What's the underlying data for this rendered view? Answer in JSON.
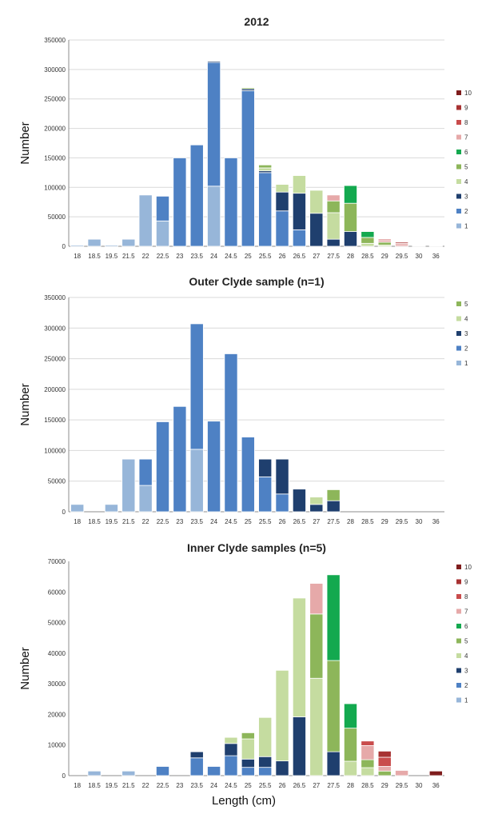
{
  "colors": {
    "1": "#97b6d9",
    "2": "#4e81c4",
    "3": "#1f3f6e",
    "4": "#c5dca0",
    "5": "#8db65a",
    "6": "#13a94f",
    "7": "#e6a9a9",
    "8": "#c94c4c",
    "9": "#a83232",
    "10": "#7f1d1d"
  },
  "shared_xlabel": "Length (cm)",
  "chart_data": [
    {
      "type": "bar",
      "stacked": true,
      "title": "2012",
      "ylabel": "Number",
      "xlabel": "",
      "ylim": [
        0,
        350000
      ],
      "yticks": [
        "0",
        "50000",
        "100000",
        "150000",
        "200000",
        "250000",
        "300000",
        "350000"
      ],
      "ytick_values": [
        0,
        50000,
        100000,
        150000,
        200000,
        250000,
        300000,
        350000
      ],
      "categories": [
        "18",
        "18.5",
        "19.5",
        "21.5",
        "22",
        "22.5",
        "23",
        "23.5",
        "24",
        "24.5",
        "25",
        "25.5",
        "26",
        "26.5",
        "27",
        "27.5",
        "28",
        "28.5",
        "29",
        "29.5",
        "30",
        "36"
      ],
      "legend": [
        "10",
        "9",
        "8",
        "7",
        "6",
        "5",
        "4",
        "3",
        "2",
        "1"
      ],
      "legend_position": "right",
      "grid": true,
      "series": [
        {
          "name": "1",
          "values": [
            2000,
            12000,
            2000,
            12000,
            87000,
            43000,
            0,
            0,
            102000,
            0,
            0,
            0,
            0,
            0,
            0,
            0,
            0,
            0,
            0,
            0,
            0,
            0
          ]
        },
        {
          "name": "2",
          "values": [
            0,
            0,
            0,
            0,
            0,
            42000,
            150000,
            172000,
            210000,
            150000,
            264000,
            125000,
            60000,
            28000,
            0,
            0,
            0,
            0,
            0,
            0,
            0,
            0
          ]
        },
        {
          "name": "3",
          "values": [
            0,
            0,
            0,
            0,
            0,
            0,
            0,
            0,
            2000,
            0,
            3000,
            3000,
            32000,
            62000,
            56000,
            12000,
            25000,
            0,
            0,
            0,
            0,
            0
          ]
        },
        {
          "name": "4",
          "values": [
            0,
            0,
            0,
            0,
            0,
            0,
            0,
            0,
            0,
            0,
            0,
            5000,
            13000,
            30000,
            39000,
            45000,
            0,
            5000,
            2000,
            0,
            0,
            0
          ]
        },
        {
          "name": "5",
          "values": [
            0,
            0,
            0,
            0,
            0,
            0,
            0,
            0,
            0,
            0,
            2000,
            5000,
            0,
            0,
            0,
            20000,
            48000,
            10000,
            5000,
            0,
            0,
            0
          ]
        },
        {
          "name": "6",
          "values": [
            0,
            0,
            0,
            0,
            0,
            0,
            0,
            0,
            0,
            0,
            0,
            0,
            0,
            0,
            0,
            0,
            30000,
            10000,
            0,
            0,
            0,
            0
          ]
        },
        {
          "name": "7",
          "values": [
            0,
            0,
            0,
            0,
            0,
            0,
            0,
            0,
            0,
            0,
            0,
            0,
            0,
            0,
            0,
            10000,
            0,
            0,
            3000,
            3000,
            0,
            0
          ]
        },
        {
          "name": "8",
          "values": [
            0,
            0,
            0,
            0,
            0,
            0,
            0,
            0,
            0,
            0,
            0,
            0,
            0,
            0,
            0,
            0,
            0,
            0,
            2000,
            2000,
            1000,
            1000
          ]
        },
        {
          "name": "9",
          "values": [
            0,
            0,
            0,
            0,
            0,
            0,
            0,
            0,
            0,
            0,
            0,
            0,
            0,
            0,
            0,
            0,
            0,
            0,
            0,
            2000,
            1000,
            1000
          ]
        },
        {
          "name": "10",
          "values": [
            0,
            0,
            0,
            0,
            0,
            0,
            0,
            0,
            0,
            0,
            0,
            0,
            0,
            0,
            0,
            0,
            0,
            0,
            0,
            0,
            0,
            0
          ]
        }
      ]
    },
    {
      "type": "bar",
      "stacked": true,
      "title": "Outer Clyde sample (n=1)",
      "ylabel": "Number",
      "xlabel": "",
      "ylim": [
        0,
        350000
      ],
      "yticks": [
        "0",
        "50000",
        "100000",
        "150000",
        "200000",
        "250000",
        "300000",
        "350000"
      ],
      "ytick_values": [
        0,
        50000,
        100000,
        150000,
        200000,
        250000,
        300000,
        350000
      ],
      "categories": [
        "18",
        "18.5",
        "19.5",
        "21.5",
        "22",
        "22.5",
        "23",
        "23.5",
        "24",
        "24.5",
        "25",
        "25.5",
        "26",
        "26.5",
        "27",
        "27.5",
        "28",
        "28.5",
        "29",
        "29.5",
        "30",
        "36"
      ],
      "legend": [
        "5",
        "4",
        "3",
        "2",
        "1"
      ],
      "legend_position": "right",
      "grid": true,
      "series": [
        {
          "name": "1",
          "values": [
            12000,
            0,
            12000,
            86000,
            43000,
            0,
            0,
            102000,
            0,
            0,
            0,
            0,
            0,
            0,
            0,
            0,
            0,
            0,
            0,
            0,
            0,
            0
          ]
        },
        {
          "name": "2",
          "values": [
            0,
            0,
            0,
            0,
            43000,
            147000,
            172000,
            205000,
            148000,
            258000,
            122000,
            57000,
            29000,
            0,
            0,
            0,
            0,
            0,
            0,
            0,
            0,
            0
          ]
        },
        {
          "name": "3",
          "values": [
            0,
            0,
            0,
            0,
            0,
            0,
            0,
            0,
            0,
            0,
            0,
            29000,
            57000,
            37000,
            12000,
            18000,
            0,
            0,
            0,
            0,
            0,
            0
          ]
        },
        {
          "name": "4",
          "values": [
            0,
            0,
            0,
            0,
            0,
            0,
            0,
            0,
            0,
            0,
            0,
            0,
            0,
            0,
            12000,
            0,
            0,
            0,
            0,
            0,
            0,
            0
          ]
        },
        {
          "name": "5",
          "values": [
            0,
            0,
            0,
            0,
            0,
            0,
            0,
            0,
            0,
            0,
            0,
            0,
            0,
            0,
            0,
            18000,
            0,
            0,
            0,
            0,
            0,
            0
          ]
        }
      ]
    },
    {
      "type": "bar",
      "stacked": true,
      "title": "Inner Clyde samples (n=5)",
      "ylabel": "Number",
      "xlabel": "Length (cm)",
      "ylim": [
        0,
        70000
      ],
      "yticks": [
        "0",
        "10000",
        "20000",
        "30000",
        "40000",
        "50000",
        "60000",
        "70000"
      ],
      "ytick_values": [
        0,
        10000,
        20000,
        30000,
        40000,
        50000,
        60000,
        70000
      ],
      "categories": [
        "18",
        "18.5",
        "19.5",
        "21.5",
        "22",
        "22.5",
        "23",
        "23.5",
        "24",
        "24.5",
        "25",
        "25.5",
        "26",
        "26.5",
        "27",
        "27.5",
        "28",
        "28.5",
        "29",
        "29.5",
        "30",
        "36"
      ],
      "legend": [
        "10",
        "9",
        "8",
        "7",
        "6",
        "5",
        "4",
        "3",
        "2",
        "1"
      ],
      "legend_position": "right",
      "grid": false,
      "series": [
        {
          "name": "1",
          "values": [
            0,
            1500,
            0,
            1500,
            0,
            0,
            0,
            0,
            0,
            0,
            0,
            0,
            0,
            0,
            0,
            0,
            0,
            0,
            0,
            0,
            0,
            0
          ]
        },
        {
          "name": "2",
          "values": [
            0,
            0,
            0,
            0,
            0,
            3000,
            0,
            5800,
            3000,
            6500,
            2700,
            2700,
            0,
            0,
            0,
            0,
            0,
            0,
            0,
            0,
            0,
            0
          ]
        },
        {
          "name": "3",
          "values": [
            0,
            0,
            0,
            0,
            0,
            0,
            0,
            2000,
            0,
            4000,
            2700,
            3500,
            4800,
            19200,
            0,
            7800,
            0,
            0,
            0,
            0,
            0,
            0
          ]
        },
        {
          "name": "4",
          "values": [
            0,
            0,
            0,
            0,
            0,
            0,
            0,
            0,
            0,
            2000,
            6600,
            12800,
            29600,
            38800,
            31800,
            0,
            4700,
            2600,
            0,
            0,
            0,
            0
          ]
        },
        {
          "name": "5",
          "values": [
            0,
            0,
            0,
            0,
            0,
            0,
            0,
            0,
            0,
            0,
            2000,
            0,
            0,
            0,
            21000,
            29800,
            10800,
            2600,
            1500,
            0,
            0,
            0
          ]
        },
        {
          "name": "6",
          "values": [
            0,
            0,
            0,
            0,
            0,
            0,
            0,
            0,
            0,
            0,
            0,
            0,
            0,
            0,
            0,
            28000,
            8000,
            0,
            0,
            0,
            0,
            0
          ]
        },
        {
          "name": "7",
          "values": [
            0,
            0,
            0,
            0,
            0,
            0,
            0,
            0,
            0,
            0,
            0,
            0,
            0,
            0,
            10000,
            0,
            0,
            4600,
            1500,
            1700,
            0,
            0
          ]
        },
        {
          "name": "8",
          "values": [
            0,
            0,
            0,
            0,
            0,
            0,
            0,
            0,
            0,
            0,
            0,
            0,
            0,
            0,
            0,
            0,
            0,
            1500,
            3000,
            0,
            0,
            0
          ]
        },
        {
          "name": "9",
          "values": [
            0,
            0,
            0,
            0,
            0,
            0,
            0,
            0,
            0,
            0,
            0,
            0,
            0,
            0,
            0,
            0,
            0,
            0,
            2000,
            0,
            0,
            0
          ]
        },
        {
          "name": "10",
          "values": [
            0,
            0,
            0,
            0,
            0,
            0,
            0,
            0,
            0,
            0,
            0,
            0,
            0,
            0,
            0,
            0,
            0,
            0,
            0,
            0,
            0,
            1500
          ]
        }
      ]
    }
  ]
}
